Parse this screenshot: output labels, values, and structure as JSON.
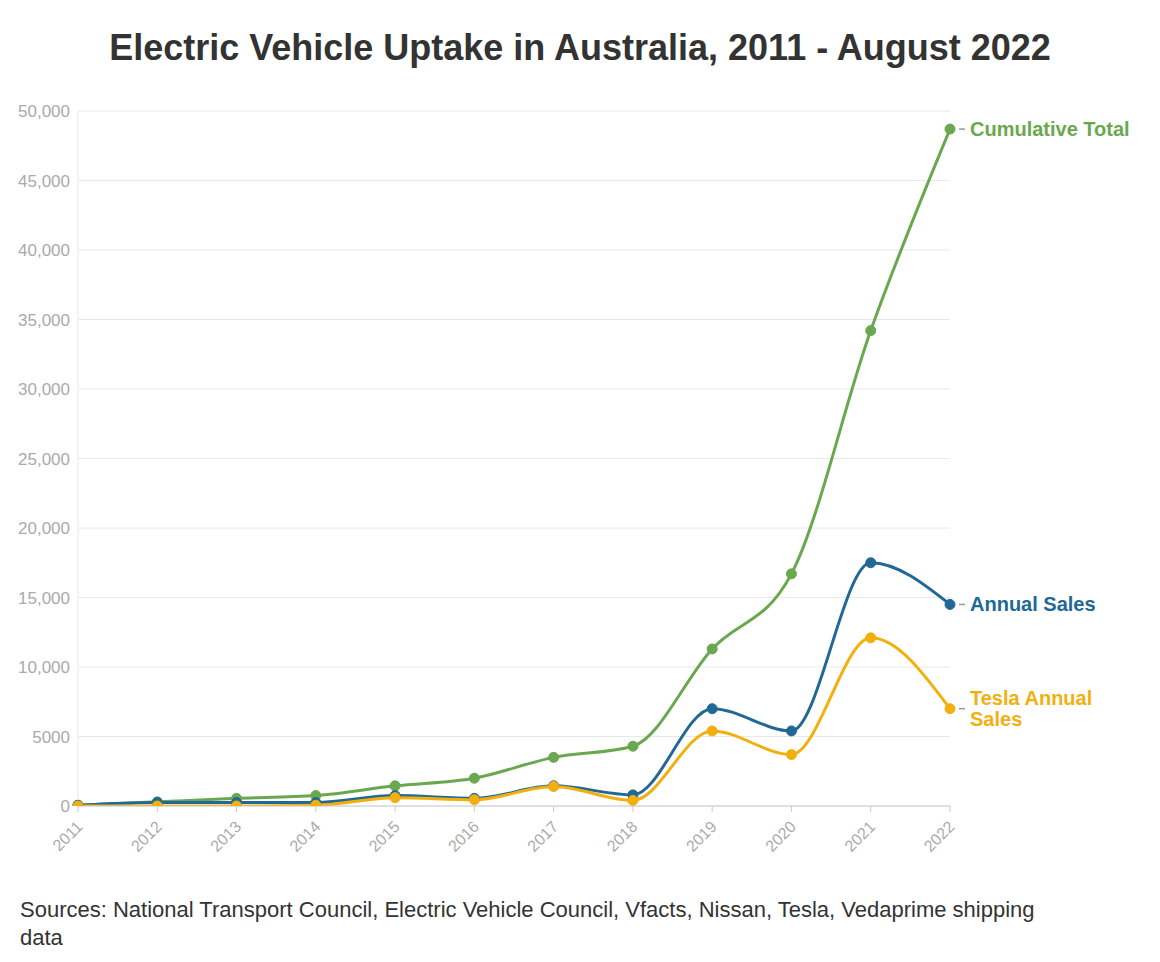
{
  "chart_data": {
    "type": "line",
    "title": "Electric Vehicle Uptake in Australia, 2011 - August 2022",
    "source": "Sources: National Transport Council, Electric Vehicle Council, Vfacts, Nissan, Tesla, Vedaprime shipping data",
    "x": [
      "2011",
      "2012",
      "2013",
      "2014",
      "2015",
      "2016",
      "2017",
      "2018",
      "2019",
      "2020",
      "2021",
      "2022"
    ],
    "series": [
      {
        "name": "Cumulative Total",
        "color": "#6aa84f",
        "values": [
          50,
          300,
          550,
          750,
          1450,
          2000,
          3500,
          4300,
          11300,
          16700,
          34200,
          48700
        ]
      },
      {
        "name": "Annual Sales",
        "color": "#216896",
        "values": [
          50,
          250,
          250,
          250,
          750,
          550,
          1450,
          800,
          7000,
          5400,
          17500,
          14500
        ]
      },
      {
        "name": "Tesla Annual Sales",
        "color": "#f2b00f",
        "values": [
          0,
          0,
          0,
          50,
          600,
          450,
          1400,
          400,
          5400,
          3700,
          12100,
          7000
        ]
      }
    ],
    "ylim": [
      0,
      50000
    ],
    "yticks": [
      0,
      5000,
      {
        "value": 10000,
        "label": "10,000"
      },
      {
        "value": 15000,
        "label": "15,000"
      },
      {
        "value": 20000,
        "label": "20,000"
      },
      {
        "value": 25000,
        "label": "25,000"
      },
      {
        "value": 30000,
        "label": "30,000"
      },
      {
        "value": 35000,
        "label": "35,000"
      },
      {
        "value": 40000,
        "label": "40,000"
      },
      {
        "value": 45000,
        "label": "45,000"
      },
      {
        "value": 50000,
        "label": "50,000"
      }
    ],
    "grid": true,
    "marker": "circle",
    "line_style": "smooth"
  }
}
